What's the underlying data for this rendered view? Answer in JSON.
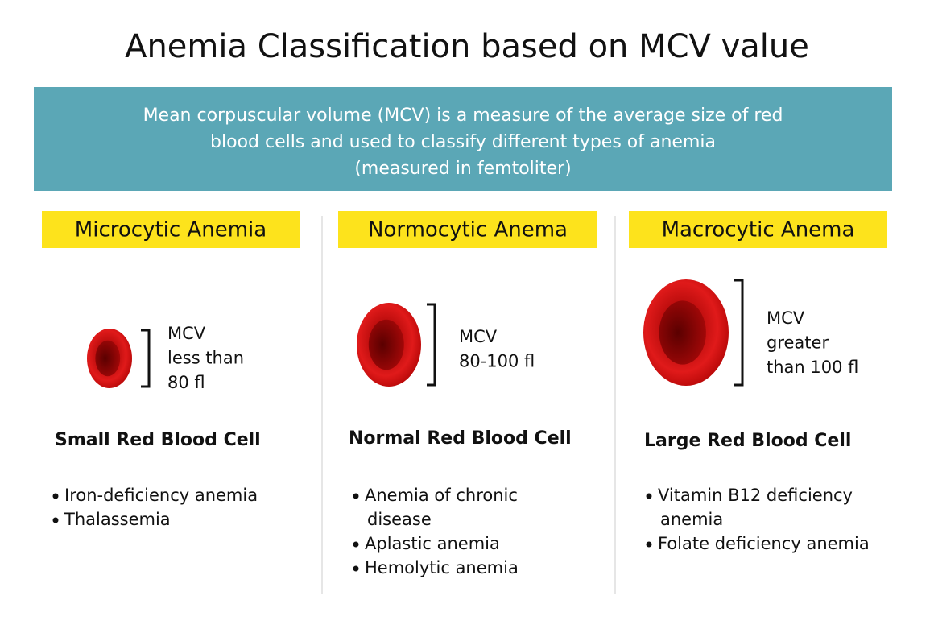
{
  "title": "Anemia Classification based on MCV value",
  "intro": {
    "lines": [
      "Mean corpuscular volume (MCV) is a measure of the average size of red",
      "blood cells and used to classify different types of anemia",
      "(measured in femtoliter)"
    ]
  },
  "columns": [
    {
      "heading": "Microcytic Anemia",
      "mcv": [
        "MCV",
        "less than",
        "80 fl"
      ],
      "cell_label": "Small Red Blood Cell",
      "bullets": [
        [
          "Iron-deficiency anemia"
        ],
        [
          "Thalassemia"
        ]
      ]
    },
    {
      "heading": "Normocytic Anema",
      "mcv": [
        "MCV",
        "80-100 fl"
      ],
      "cell_label": "Normal Red Blood Cell",
      "bullets": [
        [
          "Anemia of chronic",
          "disease"
        ],
        [
          "Aplastic anemia"
        ],
        [
          "Hemolytic anemia"
        ]
      ]
    },
    {
      "heading": "Macrocytic Anema",
      "mcv": [
        "MCV",
        "greater",
        "than 100 fl"
      ],
      "cell_label": "Large Red Blood Cell",
      "bullets": [
        [
          "Vitamin B12 deficiency",
          "anemia"
        ],
        [
          "Folate deficiency anemia"
        ]
      ]
    }
  ]
}
